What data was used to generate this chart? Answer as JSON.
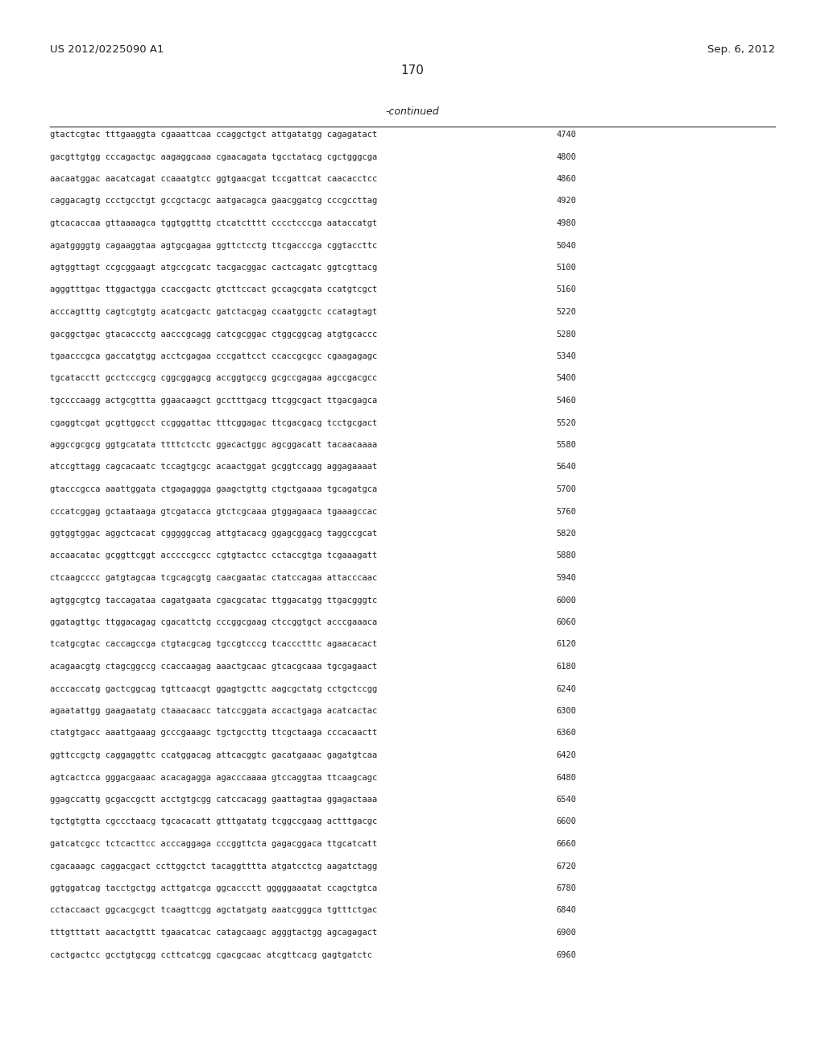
{
  "header_left": "US 2012/0225090 A1",
  "header_right": "Sep. 6, 2012",
  "page_number": "170",
  "continued_label": "-continued",
  "background_color": "#ffffff",
  "text_color": "#231f20",
  "font_size_header": 9.5,
  "font_size_page": 11,
  "font_size_continued": 9,
  "font_size_sequence": 7.5,
  "line_color": "#444444",
  "sequence_lines": [
    [
      "gtactcgtac tttgaaggta cgaaattcaa ccaggctgct attgatatgg cagagatact",
      "4740"
    ],
    [
      "gacgttgtgg cccagactgc aagaggcaaa cgaacagata tgcctatacg cgctgggcga",
      "4800"
    ],
    [
      "aacaatggac aacatcagat ccaaatgtcc ggtgaacgat tccgattcat caacacctcc",
      "4860"
    ],
    [
      "caggacagtg ccctgcctgt gccgctacgc aatgacagca gaacggatcg cccgccttag",
      "4920"
    ],
    [
      "gtcacaccaa gttaaaagca tggtggtttg ctcatctttt cccctcccga aataccatgt",
      "4980"
    ],
    [
      "agatggggtg cagaaggtaa agtgcgagaa ggttctcctg ttcgacccga cggtaccttc",
      "5040"
    ],
    [
      "agtggttagt ccgcggaagt atgccgcatc tacgacggac cactcagatc ggtcgttacg",
      "5100"
    ],
    [
      "agggtttgac ttggactgga ccaccgactc gtcttccact gccagcgata ccatgtcgct",
      "5160"
    ],
    [
      "acccagtttg cagtcgtgtg acatcgactc gatctacgag ccaatggctc ccatagtagt",
      "5220"
    ],
    [
      "gacggctgac gtacaccctg aacccgcagg catcgcggac ctggcggcag atgtgcaccc",
      "5280"
    ],
    [
      "tgaacccgca gaccatgtgg acctcgagaa cccgattcct ccaccgcgcc cgaagagagc",
      "5340"
    ],
    [
      "tgcatacctt gcctcccgcg cggcggagcg accggtgccg gcgccgagaa agccgacgcc",
      "5400"
    ],
    [
      "tgccccaagg actgcgttta ggaacaagct gcctttgacg ttcggcgact ttgacgagca",
      "5460"
    ],
    [
      "cgaggtcgat gcgttggcct ccgggattac tttcggagac ttcgacgacg tcctgcgact",
      "5520"
    ],
    [
      "aggccgcgcg ggtgcatata ttttctcctc ggacactggc agcggacatt tacaacaaaa",
      "5580"
    ],
    [
      "atccgttagg cagcacaatc tccagtgcgc acaactggat gcggtccagg aggagaaaat",
      "5640"
    ],
    [
      "gtacccgcca aaattggata ctgagaggga gaagctgttg ctgctgaaaa tgcagatgca",
      "5700"
    ],
    [
      "cccatcggag gctaataaga gtcgatacca gtctcgcaaa gtggagaaca tgaaagccac",
      "5760"
    ],
    [
      "ggtggtggac aggctcacat cgggggccag attgtacacg ggagcggacg taggccgcat",
      "5820"
    ],
    [
      "accaacatac gcggttcggt acccccgccc cgtgtactcc cctaccgtga tcgaaagatt",
      "5880"
    ],
    [
      "ctcaagcccc gatgtagcaa tcgcagcgtg caacgaatac ctatccagaa attacccaac",
      "5940"
    ],
    [
      "agtggcgtcg taccagataa cagatgaata cgacgcatac ttggacatgg ttgacgggtc",
      "6000"
    ],
    [
      "ggatagttgc ttggacagag cgacattctg cccggcgaag ctccggtgct acccgaaaca",
      "6060"
    ],
    [
      "tcatgcgtac caccagccga ctgtacgcag tgccgtcccg tcaccctttc agaacacact",
      "6120"
    ],
    [
      "acagaacgtg ctagcggccg ccaccaagag aaactgcaac gtcacgcaaa tgcgagaact",
      "6180"
    ],
    [
      "acccaccatg gactcggcag tgttcaacgt ggagtgcttc aagcgctatg cctgctccgg",
      "6240"
    ],
    [
      "agaatattgg gaagaatatg ctaaacaacc tatccggata accactgaga acatcactac",
      "6300"
    ],
    [
      "ctatgtgacc aaattgaaag gcccgaaagc tgctgccttg ttcgctaaga cccacaactt",
      "6360"
    ],
    [
      "ggttccgctg caggaggttc ccatggacag attcacggtc gacatgaaac gagatgtcaa",
      "6420"
    ],
    [
      "agtcactcca gggacgaaac acacagagga agacccaaaa gtccaggtaa ttcaagcagc",
      "6480"
    ],
    [
      "ggagccattg gcgaccgctt acctgtgcgg catccacagg gaattagtaa ggagactaaa",
      "6540"
    ],
    [
      "tgctgtgtta cgccctaacg tgcacacatt gtttgatatg tcggccgaag actttgacgc",
      "6600"
    ],
    [
      "gatcatcgcc tctcacttcc acccaggaga cccggttcta gagacggaca ttgcatcatt",
      "6660"
    ],
    [
      "cgacaaagc caggacgact ccttggctct tacaggtttta atgatcctcg aagatctagg",
      "6720"
    ],
    [
      "ggtggatcag tacctgctgg acttgatcga ggcaccctt gggggaaatat ccagctgtca",
      "6780"
    ],
    [
      "cctaccaact ggcacgcgct tcaagttcgg agctatgatg aaatcgggca tgtttctgac",
      "6840"
    ],
    [
      "tttgtttatt aacactgttt tgaacatcac catagcaagc agggtactgg agcagagact",
      "6900"
    ],
    [
      "cactgactcc gcctgtgcgg ccttcatcgg cgacgcaac atcgttcacg gagtgatctc",
      "6960"
    ]
  ]
}
